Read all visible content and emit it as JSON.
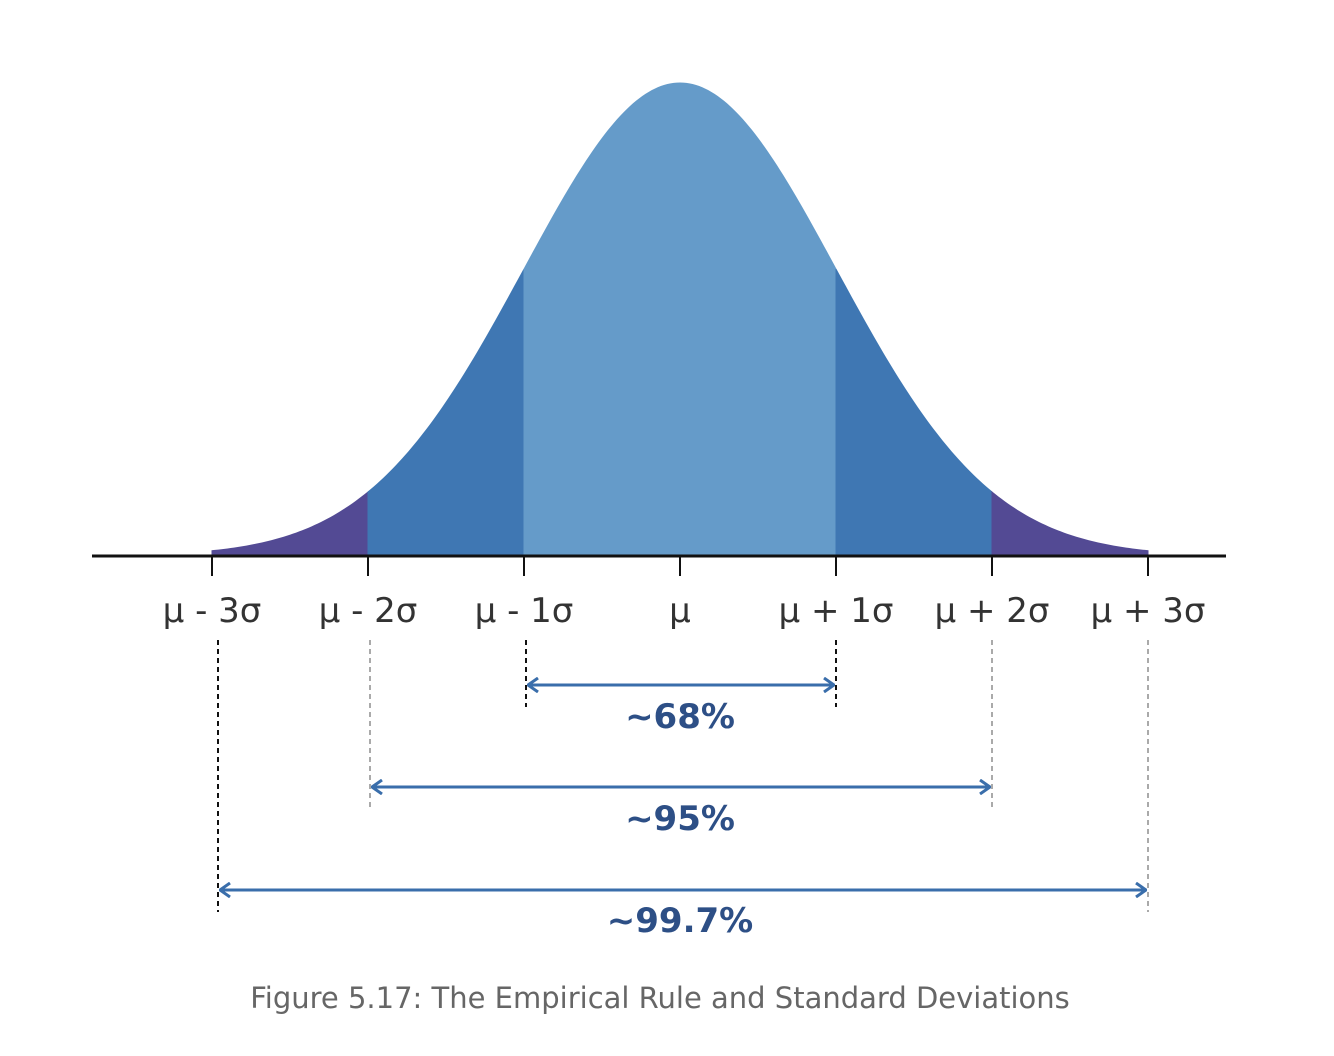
{
  "axis_labels": [
    "μ - 3σ",
    "μ - 2σ",
    "μ - 1σ",
    "μ",
    "μ + 1σ",
    "μ + 2σ",
    "μ + 3σ"
  ],
  "ranges": [
    "~68%",
    "~95%",
    "~99.7%"
  ],
  "caption": "Figure 5.17: The Empirical Rule and Standard Deviations"
}
